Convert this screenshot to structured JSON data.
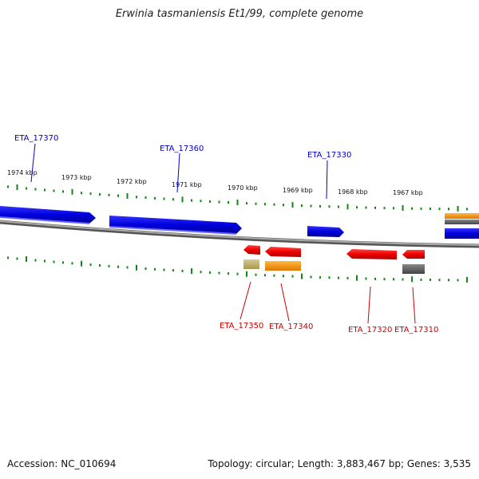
{
  "title": "Erwinia tasmaniensis Et1/99, complete genome",
  "footer": {
    "accession": "Accession: NC_010694",
    "summary": "Topology: circular; Length: 3,883,467 bp; Genes: 3,535"
  },
  "ruler": {
    "labels": [
      "1974 kbp",
      "1973 kbp",
      "1972 kbp",
      "1971 kbp",
      "1970 kbp",
      "1969 kbp",
      "1968 kbp",
      "1967 kbp"
    ]
  },
  "genes": {
    "forward": [
      {
        "name": "ETA_17370",
        "color": "#0000cc"
      },
      {
        "name": "ETA_17360",
        "color": "#0000cc"
      },
      {
        "name": "ETA_17330",
        "color": "#0000cc"
      }
    ],
    "reverse": [
      {
        "name": "ETA_17350",
        "color": "#cc0000"
      },
      {
        "name": "ETA_17340",
        "color": "#cc0000"
      },
      {
        "name": "ETA_17320",
        "color": "#cc0000"
      },
      {
        "name": "ETA_17310",
        "color": "#cc0000"
      }
    ]
  },
  "colors": {
    "forward_strand": "#0000ee",
    "reverse_strand": "#ff0000",
    "backbone": "#888888",
    "ruler_ticks": "#118811",
    "feature_orange": "#ff9900",
    "feature_khaki": "#c8b870",
    "feature_gray": "#666666"
  }
}
